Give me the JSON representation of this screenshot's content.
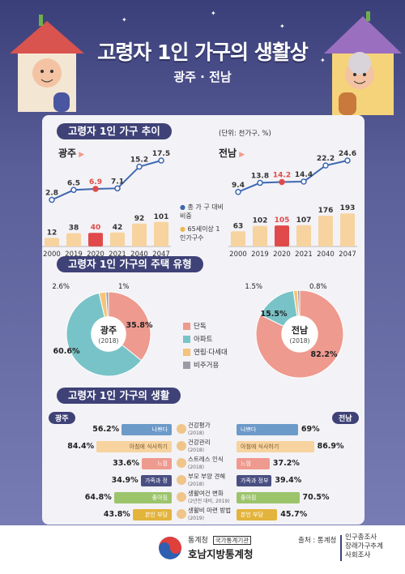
{
  "header": {
    "title": "고령자 1인 가구의 생활상",
    "subtitle": "광주 · 전남"
  },
  "section1": {
    "title": "고령자 1인 가구 추이",
    "unit": "(단위: 천가구, %)",
    "legend_line": "총 가 구 대비 비중",
    "legend_bar": "65세이상 1인가구수"
  },
  "section2": {
    "title": "고령자 1인 가구의 주택 유형",
    "legend": [
      "단독",
      "아파트",
      "연립·다세대",
      "비주거용"
    ]
  },
  "section3": {
    "title": "고령자 1인 가구의 생활",
    "left_region": "광주",
    "right_region": "전남"
  },
  "colors": {
    "navy": "#3f4277",
    "bar_peach": "#f7d39f",
    "bar_red": "#e04a4a",
    "line_blue": "#3d67b1",
    "pie_single": "#ee9a8f",
    "pie_apt": "#78c3c8",
    "pie_rowhouse": "#f5c37a",
    "pie_nonres": "#9c9aa6"
  },
  "chart_data": [
    {
      "type": "bar",
      "region": "광주",
      "categories": [
        "2000",
        "2019",
        "2020",
        "2021",
        "2040",
        "2047"
      ],
      "series": [
        {
          "name": "65세이상 1인가구수",
          "values": [
            12,
            38,
            40,
            42,
            92,
            101
          ]
        },
        {
          "name": "총 가 구 대비 비중",
          "values": [
            2.8,
            6.5,
            6.9,
            7.1,
            15.2,
            17.5
          ]
        }
      ],
      "highlight": "2020"
    },
    {
      "type": "bar",
      "region": "전남",
      "categories": [
        "2000",
        "2019",
        "2020",
        "2021",
        "2040",
        "2047"
      ],
      "series": [
        {
          "name": "65세이상 1인가구수",
          "values": [
            63,
            102,
            105,
            107,
            176,
            193
          ]
        },
        {
          "name": "총 가 구 대비 비중",
          "values": [
            9.4,
            13.8,
            14.2,
            14.4,
            22.2,
            24.6
          ]
        }
      ],
      "highlight": "2020"
    },
    {
      "type": "pie",
      "region": "광주",
      "year": "(2018)",
      "categories": [
        "단독",
        "아파트",
        "연립·다세대",
        "비주거용"
      ],
      "values": [
        35.8,
        60.6,
        2.6,
        1.0
      ]
    },
    {
      "type": "pie",
      "region": "전남",
      "year": "(2018)",
      "categories": [
        "단독",
        "아파트",
        "연립·다세대",
        "비주거용"
      ],
      "values": [
        82.2,
        15.5,
        1.5,
        0.8
      ]
    },
    {
      "type": "bar",
      "title": "고령자 1인 가구의 생활",
      "categories": [
        "건강평가",
        "건강관리",
        "스트레스 인식",
        "부모 부양 견해",
        "생활여건 변화",
        "생활비 마련 방법"
      ],
      "category_notes": [
        "(2018)",
        "(2018)",
        "(2018)",
        "(2018)",
        "(2년전 대비, 2019)",
        "(2019)"
      ],
      "bar_labels": [
        "나쁘다",
        "아침에 식사하기",
        "느낌",
        "가족과 정부사회",
        "좋아짐",
        "본인 부담"
      ],
      "bar_colors": [
        "#6c9ac9",
        "#f7d39f",
        "#ee9a8f",
        "#4a4f82",
        "#9cc46b",
        "#e3b43c"
      ],
      "series": [
        {
          "name": "광주",
          "values": [
            56.2,
            84.4,
            33.6,
            34.9,
            64.8,
            43.8
          ]
        },
        {
          "name": "전남",
          "values": [
            69.0,
            86.9,
            37.2,
            39.4,
            70.5,
            45.7
          ]
        }
      ]
    }
  ],
  "footer": {
    "org_top": "통계청",
    "org_tag": "국가통계기관",
    "org_name": "호남지방통계청",
    "source_label": "출처 : 통계청",
    "source_items": [
      "인구총조사",
      "장래가구추계",
      "사회조사"
    ]
  }
}
